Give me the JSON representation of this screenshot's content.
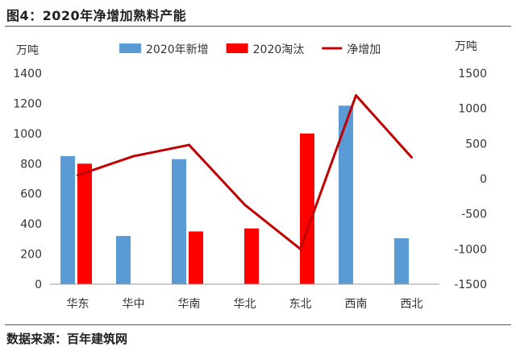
{
  "figure": {
    "title": "图4：2020年净增加熟料产能",
    "source": "数据来源：百年建筑网"
  },
  "chart_data": {
    "type": "bar",
    "categories": [
      "华东",
      "华中",
      "华南",
      "华北",
      "东北",
      "西南",
      "西北"
    ],
    "series": [
      {
        "name": "2020年新增",
        "type": "bar",
        "axis": "left",
        "color": "#5b9bd5",
        "values": [
          850,
          320,
          830,
          0,
          0,
          1185,
          305
        ]
      },
      {
        "name": "2020淘汰",
        "type": "bar",
        "axis": "left",
        "color": "#ff0000",
        "values": [
          800,
          0,
          350,
          370,
          1000,
          0,
          0
        ]
      },
      {
        "name": "净增加",
        "type": "line",
        "axis": "right",
        "color": "#c00000",
        "values": [
          50,
          320,
          480,
          -370,
          -1000,
          1185,
          305
        ]
      }
    ],
    "left_axis": {
      "unit": "万吨",
      "min": 0,
      "max": 1400,
      "ticks": [
        0,
        200,
        400,
        600,
        800,
        1000,
        1200,
        1400
      ]
    },
    "right_axis": {
      "unit": "万吨",
      "min": -1500,
      "max": 1500,
      "ticks": [
        -1500,
        -1000,
        -500,
        0,
        500,
        1000,
        1500
      ]
    },
    "legend_position": "top",
    "grid": false
  }
}
